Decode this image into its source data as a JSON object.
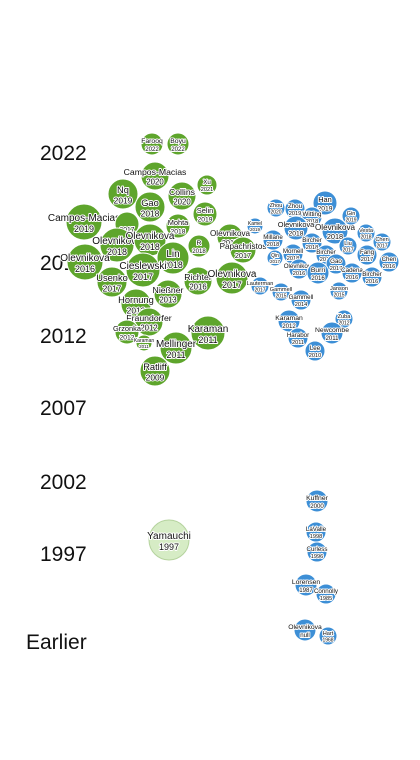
{
  "chart_data": {
    "type": "scatter",
    "y_axis_labels": [
      "2022",
      "2017",
      "2012",
      "2007",
      "2002",
      "1997",
      "Earlier"
    ],
    "colors": {
      "green": "#5ea52c",
      "blue": "#3d8fd6",
      "green_light": "#d6ecc5"
    },
    "clusters": [
      {
        "color": "green",
        "bubbles": [
          {
            "name": "Farooq",
            "year": "2022"
          },
          {
            "name": "Boyu",
            "year": "2022"
          },
          {
            "name": "Campos-Macias",
            "year": "2020"
          },
          {
            "name": "Xu",
            "year": "2021"
          },
          {
            "name": "Nq",
            "year": "2019"
          },
          {
            "name": "Collins",
            "year": "2020"
          },
          {
            "name": "Gao",
            "year": "2018"
          },
          {
            "name": "Selin",
            "year": "2019"
          },
          {
            "name": "Campos-Macias",
            "year": "2019"
          },
          {
            "name": "Mohta",
            "year": "2018"
          },
          {
            "name": "",
            "year": "2017"
          },
          {
            "name": "Olevnikova",
            "year": "2018"
          },
          {
            "name": "Olevnikova",
            "year": "2017"
          },
          {
            "name": "Olevnikova",
            "year": "2018"
          },
          {
            "name": "R",
            "year": "2018"
          },
          {
            "name": "Olevnikova",
            "year": "2016"
          },
          {
            "name": "Papachristos",
            "year": "2017"
          },
          {
            "name": "Lin",
            "year": "2018"
          },
          {
            "name": "Cieslewski",
            "year": "2017"
          },
          {
            "name": "Usenko",
            "year": "2017"
          },
          {
            "name": "Richter",
            "year": "2016"
          },
          {
            "name": "Olevnikova",
            "year": "2017"
          },
          {
            "name": "Nießner",
            "year": "2013"
          },
          {
            "name": "Hornung",
            "year": "2013"
          },
          {
            "name": "Fraundorfer",
            "year": "2012"
          },
          {
            "name": "Grzonka",
            "year": "2012"
          },
          {
            "name": "Karaman",
            "year": "2011"
          },
          {
            "name": "Karaman",
            "year": "2011"
          },
          {
            "name": "Mellinger",
            "year": "2011"
          },
          {
            "name": "Ratliff",
            "year": "2009"
          },
          {
            "name": "Yamauchi",
            "year": "1997"
          }
        ]
      },
      {
        "color": "blue",
        "bubbles": [
          {
            "name": "Zhou",
            "year": "2019"
          },
          {
            "name": "Han",
            "year": "2019"
          },
          {
            "name": "Zhou",
            "year": "2020"
          },
          {
            "name": "Witting",
            "year": "2018"
          },
          {
            "name": "Gin",
            "year": "2019"
          },
          {
            "name": "Kamel",
            "year": "2019"
          },
          {
            "name": "Olevnikova",
            "year": "2018"
          },
          {
            "name": "Olevnikova",
            "year": "2018"
          },
          {
            "name": "Millane",
            "year": "2018"
          },
          {
            "name": "Bircher",
            "year": "2018"
          },
          {
            "name": "Vesta",
            "year": "2018"
          },
          {
            "name": "Chen",
            "year": "2017"
          },
          {
            "name": "Mornell",
            "year": "2018"
          },
          {
            "name": "Bircher",
            "year": "2016"
          },
          {
            "name": "Liu",
            "year": "2017"
          },
          {
            "name": "Chen",
            "year": "2016"
          },
          {
            "name": "Qin",
            "year": "2017"
          },
          {
            "name": "Gao",
            "year": "2017"
          },
          {
            "name": "Fang",
            "year": "2017"
          },
          {
            "name": "Olevnikova",
            "year": "2016"
          },
          {
            "name": "Burri",
            "year": "2016"
          },
          {
            "name": "Cadena",
            "year": "2016"
          },
          {
            "name": "Lauterman",
            "year": "2017"
          },
          {
            "name": "Gammell",
            "year": "2015"
          },
          {
            "name": "Bircher",
            "year": "2016"
          },
          {
            "name": "Gammell",
            "year": "2014"
          },
          {
            "name": "Janson",
            "year": "2015"
          },
          {
            "name": "Zuba",
            "year": "2012"
          },
          {
            "name": "Karaman",
            "year": "2012"
          },
          {
            "name": "Newcombe",
            "year": "2011"
          },
          {
            "name": "Harabor",
            "year": "2011"
          },
          {
            "name": "Lee",
            "year": "2010"
          },
          {
            "name": "Kuffner",
            "year": "2000"
          },
          {
            "name": "LaValle",
            "year": "1998"
          },
          {
            "name": "Curless",
            "year": "1996"
          },
          {
            "name": "Lorensen",
            "year": "1987"
          },
          {
            "name": "Connolly",
            "year": "1985"
          },
          {
            "name": "Olevnikova",
            "year": "null"
          },
          {
            "name": "Hart",
            "year": "1968"
          }
        ]
      }
    ]
  }
}
